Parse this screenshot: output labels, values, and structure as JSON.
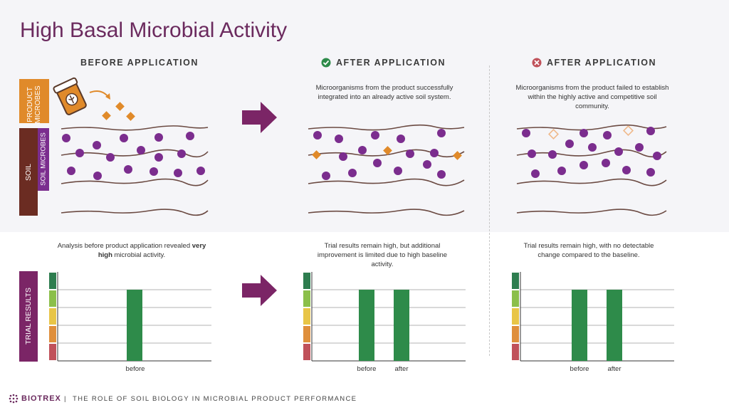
{
  "title": "High Basal Microbial Activity",
  "columns": [
    {
      "heading": "BEFORE APPLICATION",
      "status": "none",
      "scene_text": "",
      "results_text_before": "Analysis before product application revealed ",
      "results_text_bold": "very high",
      "results_text_after": " microbial activity."
    },
    {
      "heading": "AFTER APPLICATION",
      "status": "success",
      "scene_text": "Microorganisms from the product successfully integrated into an already active soil system.",
      "results_text": "Trial results remain high, but additional improvement is limited due to high baseline activity."
    },
    {
      "heading": "AFTER APPLICATION",
      "status": "failure",
      "scene_text": "Microorganisms from the product failed to establish within the highly active and competitive soil community.",
      "results_text": "Trial results remain high, with no detectable change compared to the baseline."
    }
  ],
  "side_labels": {
    "product_microbes": "PRODUCT MICROBES",
    "soil": "SOIL",
    "soil_microbes": "SOIL MICROBES",
    "trial_results": "TRIAL RESULTS"
  },
  "chart_data": [
    {
      "type": "bar",
      "categories": [
        "before"
      ],
      "values": [
        4
      ],
      "ylim": [
        0,
        5
      ],
      "grid": true
    },
    {
      "type": "bar",
      "categories": [
        "before",
        "after"
      ],
      "values": [
        4,
        4
      ],
      "ylim": [
        0,
        5
      ],
      "grid": true
    },
    {
      "type": "bar",
      "categories": [
        "before",
        "after"
      ],
      "values": [
        4,
        4
      ],
      "ylim": [
        0,
        5
      ],
      "grid": true
    }
  ],
  "colors": {
    "title": "#6b2a5e",
    "microbe": "#7b2d8e",
    "product": "#e08a2a",
    "soil": "#6b2c22",
    "bar": "#2e8b4a",
    "arrow": "#7b2566",
    "scale": [
      "#2e7d4f",
      "#8bbf4a",
      "#e8c547",
      "#df8f3c",
      "#c0515a"
    ]
  },
  "footer": {
    "brand": "BIOTREX",
    "separator": "|",
    "text": "THE ROLE OF SOIL BIOLOGY IN MICROBIAL PRODUCT PERFORMANCE"
  }
}
